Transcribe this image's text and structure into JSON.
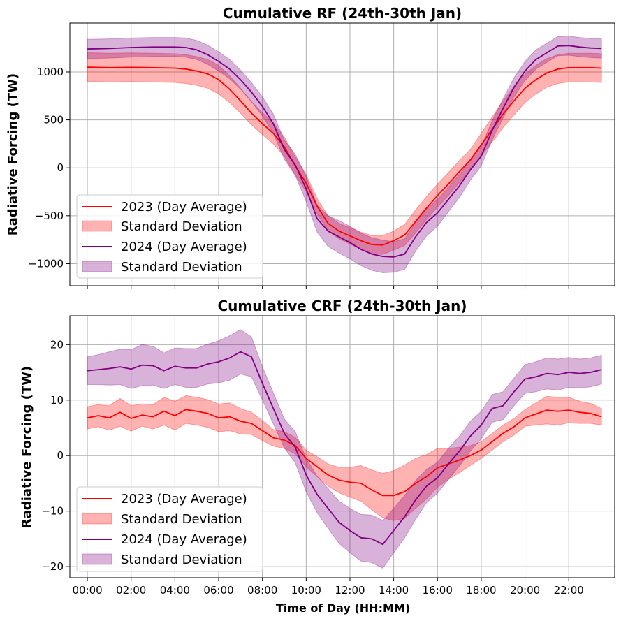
{
  "chart_data": [
    {
      "type": "line",
      "title": "Cumulative RF (24th-30th Jan)",
      "ylabel": "Radiative Forcing (TW)",
      "xlabel": "",
      "xlim": [
        -0.8,
        24.1
      ],
      "ylim": [
        -1230,
        1510
      ],
      "y_ticks": [
        -1000,
        -500,
        0,
        500,
        1000
      ],
      "y_tick_labels": [
        "−1000",
        "−500",
        "0",
        "500",
        "1000"
      ],
      "x_ticks": [
        0,
        2,
        4,
        6,
        8,
        10,
        12,
        14,
        16,
        18,
        20,
        22
      ],
      "x_tick_labels": [],
      "grid": true,
      "legend_position": "lower-left",
      "series": [
        {
          "name": "2023 (Day Average)",
          "band_label": "Standard Deviation",
          "color": "#ff0000",
          "band_color": "#ff0000",
          "x": [
            0,
            1,
            2,
            3,
            4,
            4.5,
            5,
            5.5,
            6,
            6.5,
            7,
            7.5,
            8,
            8.5,
            9,
            9.5,
            10,
            10.5,
            11,
            11.5,
            12,
            12.5,
            13,
            13.5,
            14,
            14.5,
            15,
            15.5,
            16,
            16.5,
            17,
            17.5,
            18,
            18.5,
            19,
            19.5,
            20,
            20.5,
            21,
            21.5,
            22,
            22.5,
            23,
            23.5
          ],
          "mean": [
            1050,
            1045,
            1048,
            1045,
            1040,
            1030,
            1010,
            980,
            920,
            820,
            700,
            570,
            460,
            360,
            220,
            20,
            -160,
            -400,
            -580,
            -660,
            -710,
            -760,
            -800,
            -805,
            -760,
            -700,
            -560,
            -420,
            -290,
            -170,
            -40,
            80,
            240,
            400,
            560,
            700,
            830,
            920,
            990,
            1030,
            1045,
            1045,
            1045,
            1040
          ],
          "std": [
            150,
            150,
            150,
            150,
            150,
            150,
            150,
            150,
            150,
            140,
            130,
            120,
            115,
            110,
            100,
            95,
            90,
            80,
            80,
            80,
            85,
            90,
            95,
            100,
            100,
            110,
            120,
            120,
            120,
            120,
            115,
            110,
            120,
            130,
            140,
            150,
            150,
            150,
            150,
            150,
            150,
            150,
            150,
            150
          ]
        },
        {
          "name": "2024 (Day Average)",
          "band_label": "Standard Deviation",
          "color": "#800080",
          "band_color": "#800080",
          "x": [
            0,
            1,
            2,
            3,
            4,
            4.5,
            5,
            5.5,
            6,
            6.5,
            7,
            7.5,
            8,
            8.5,
            9,
            9.5,
            10,
            10.5,
            11,
            11.5,
            12,
            12.5,
            13,
            13.5,
            14,
            14.5,
            15,
            15.5,
            16,
            16.5,
            17,
            17.5,
            18,
            18.5,
            19,
            19.5,
            20,
            20.5,
            21,
            21.5,
            22,
            22.5,
            23,
            23.5
          ],
          "mean": [
            1240,
            1245,
            1255,
            1260,
            1260,
            1255,
            1230,
            1180,
            1110,
            1030,
            920,
            790,
            640,
            460,
            190,
            30,
            -220,
            -530,
            -660,
            -720,
            -780,
            -850,
            -900,
            -925,
            -930,
            -900,
            -720,
            -570,
            -470,
            -330,
            -190,
            -20,
            120,
            390,
            620,
            840,
            1010,
            1130,
            1200,
            1270,
            1275,
            1260,
            1250,
            1245
          ],
          "std": [
            100,
            100,
            100,
            100,
            100,
            100,
            100,
            100,
            100,
            100,
            100,
            100,
            100,
            100,
            100,
            110,
            130,
            140,
            160,
            170,
            170,
            170,
            170,
            170,
            160,
            160,
            150,
            140,
            140,
            130,
            120,
            110,
            100,
            100,
            100,
            100,
            100,
            100,
            100,
            100,
            100,
            100,
            100,
            100
          ]
        }
      ]
    },
    {
      "type": "line",
      "title": "Cumulative CRF (24th-30th Jan)",
      "ylabel": "Radiative Forcing (TW)",
      "xlabel": "Time of Day (HH:MM)",
      "xlim": [
        -0.8,
        24.1
      ],
      "ylim": [
        -22,
        25.2
      ],
      "y_ticks": [
        -20,
        -10,
        0,
        10,
        20
      ],
      "y_tick_labels": [
        "−20",
        "−10",
        "0",
        "10",
        "20"
      ],
      "x_ticks": [
        0,
        2,
        4,
        6,
        8,
        10,
        12,
        14,
        16,
        18,
        20,
        22
      ],
      "x_tick_labels": [
        "00:00",
        "02:00",
        "04:00",
        "06:00",
        "08:00",
        "10:00",
        "12:00",
        "14:00",
        "16:00",
        "18:00",
        "20:00",
        "22:00"
      ],
      "grid": true,
      "legend_position": "lower-left",
      "series": [
        {
          "name": "2023 (Day Average)",
          "band_label": "Standard Deviation",
          "color": "#ff0000",
          "band_color": "#ff0000",
          "x": [
            0,
            0.5,
            1,
            1.5,
            2,
            2.5,
            3,
            3.5,
            4,
            4.5,
            5,
            5.5,
            6,
            6.5,
            7,
            7.5,
            8,
            8.5,
            9,
            9.5,
            10,
            10.5,
            11,
            11.5,
            12,
            12.5,
            13,
            13.5,
            14,
            14.5,
            15,
            15.5,
            16,
            16.5,
            17,
            17.5,
            18,
            18.5,
            19,
            19.5,
            20,
            20.5,
            21,
            21.5,
            22,
            22.5,
            23,
            23.5
          ],
          "mean": [
            6.8,
            7.2,
            6.8,
            7.8,
            6.7,
            7.3,
            7.0,
            8.0,
            7.2,
            8.3,
            8.0,
            7.6,
            6.8,
            7.0,
            6.2,
            5.8,
            4.5,
            3.2,
            2.8,
            1.8,
            -0.5,
            -2.0,
            -3.5,
            -4.4,
            -4.8,
            -5.0,
            -6.2,
            -7.2,
            -7.2,
            -6.5,
            -5.0,
            -3.8,
            -2.2,
            -1.5,
            -0.8,
            0.0,
            1.0,
            2.5,
            4.0,
            5.2,
            6.8,
            7.5,
            8.2,
            8.0,
            8.2,
            7.8,
            7.6,
            7.0
          ],
          "std": [
            2.0,
            2.0,
            2.2,
            2.5,
            2.3,
            2.0,
            2.2,
            2.5,
            2.6,
            2.5,
            2.5,
            2.5,
            2.5,
            2.5,
            2.3,
            2.0,
            1.8,
            1.5,
            1.5,
            1.5,
            1.5,
            1.8,
            2.0,
            2.3,
            2.7,
            3.2,
            3.6,
            4.0,
            4.5,
            4.8,
            4.5,
            4.0,
            3.5,
            2.8,
            2.3,
            1.8,
            1.5,
            1.5,
            1.5,
            1.5,
            1.5,
            2.0,
            2.5,
            2.5,
            2.3,
            2.0,
            1.8,
            1.5
          ]
        },
        {
          "name": "2024 (Day Average)",
          "band_label": "Standard Deviation",
          "color": "#800080",
          "band_color": "#800080",
          "x": [
            0,
            0.5,
            1,
            1.5,
            2,
            2.5,
            3,
            3.5,
            4,
            4.5,
            5,
            5.5,
            6,
            6.5,
            7,
            7.5,
            8,
            8.5,
            9,
            9.5,
            10,
            10.5,
            11,
            11.5,
            12,
            12.5,
            13,
            13.5,
            14,
            14.5,
            15,
            15.5,
            16,
            16.5,
            17,
            17.5,
            18,
            18.5,
            19,
            19.5,
            20,
            20.5,
            21,
            21.5,
            22,
            22.5,
            23,
            23.5
          ],
          "mean": [
            15.3,
            15.5,
            15.7,
            16.0,
            15.6,
            16.3,
            16.2,
            15.3,
            16.1,
            15.8,
            15.8,
            16.5,
            16.9,
            17.6,
            18.7,
            17.8,
            13.0,
            8.5,
            4.0,
            1.5,
            -3.5,
            -7.0,
            -9.5,
            -12.0,
            -13.5,
            -14.8,
            -15.0,
            -16.0,
            -13.5,
            -11.0,
            -8.0,
            -5.5,
            -4.0,
            -1.5,
            0.8,
            3.5,
            5.5,
            8.5,
            9.0,
            11.5,
            13.8,
            14.2,
            14.8,
            14.6,
            15.0,
            14.8,
            15.0,
            15.5
          ],
          "std": [
            2.5,
            2.7,
            3.0,
            3.2,
            3.5,
            3.7,
            3.5,
            3.2,
            3.3,
            3.5,
            3.5,
            3.6,
            3.8,
            4.0,
            4.0,
            3.6,
            3.0,
            2.8,
            2.6,
            2.8,
            3.0,
            3.3,
            3.6,
            3.8,
            4.0,
            4.2,
            4.3,
            4.3,
            4.0,
            3.8,
            3.5,
            3.0,
            2.8,
            2.8,
            2.7,
            2.7,
            2.5,
            2.5,
            2.5,
            2.5,
            2.6,
            2.7,
            2.8,
            2.8,
            2.7,
            2.6,
            2.6,
            2.6
          ]
        }
      ]
    }
  ]
}
